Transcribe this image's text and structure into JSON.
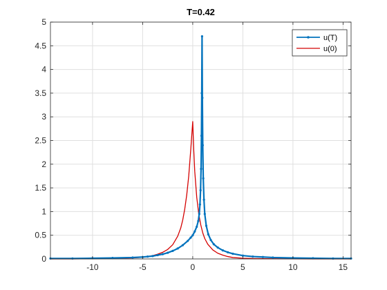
{
  "chart_data": {
    "type": "line",
    "title": "T=0.42",
    "xlabel": "",
    "ylabel": "",
    "xlim": [
      -14.2,
      15.8
    ],
    "ylim": [
      0,
      5
    ],
    "xticks": [
      -10,
      -5,
      0,
      5,
      10,
      15
    ],
    "xtick_labels": [
      "-10",
      "-5",
      "0",
      "5",
      "10",
      "15"
    ],
    "yticks": [
      0,
      0.5,
      1,
      1.5,
      2,
      2.5,
      3,
      3.5,
      4,
      4.5,
      5
    ],
    "ytick_labels": [
      "0",
      "0.5",
      "1",
      "1.5",
      "2",
      "2.5",
      "3",
      "3.5",
      "4",
      "4.5",
      "5"
    ],
    "grid": true,
    "legend_position": "top-right",
    "series": [
      {
        "name": "u(T)",
        "color": "#0072BD",
        "marker": "point",
        "x": [
          -14.2,
          -12,
          -10,
          -8,
          -6,
          -5,
          -4.5,
          -4,
          -3.5,
          -3,
          -2.5,
          -2,
          -1.5,
          -1,
          -0.5,
          -0.2,
          0,
          0.2,
          0.4,
          0.55,
          0.65,
          0.72,
          0.78,
          0.83,
          0.87,
          0.9,
          0.93,
          0.96,
          1.0,
          1.05,
          1.12,
          1.2,
          1.35,
          1.55,
          1.8,
          2.1,
          2.5,
          3,
          3.5,
          4,
          5,
          6,
          7,
          8,
          10,
          12,
          14,
          15.8
        ],
        "y": [
          0.01,
          0.01,
          0.015,
          0.02,
          0.03,
          0.04,
          0.05,
          0.06,
          0.08,
          0.1,
          0.13,
          0.17,
          0.22,
          0.29,
          0.38,
          0.45,
          0.5,
          0.58,
          0.68,
          0.8,
          0.95,
          1.15,
          1.45,
          1.9,
          2.6,
          3.5,
          4.7,
          3.4,
          2.4,
          1.7,
          1.25,
          0.95,
          0.7,
          0.52,
          0.4,
          0.31,
          0.24,
          0.18,
          0.14,
          0.11,
          0.07,
          0.05,
          0.04,
          0.03,
          0.02,
          0.015,
          0.01,
          0.01
        ]
      },
      {
        "name": "u(0)",
        "color": "#D40000",
        "marker": "none",
        "x": [
          -14.2,
          -12,
          -10,
          -8,
          -6,
          -5,
          -4.5,
          -4,
          -3.5,
          -3,
          -2.5,
          -2,
          -1.5,
          -1.2,
          -1,
          -0.8,
          -0.6,
          -0.4,
          -0.2,
          -0.1,
          0,
          0.1,
          0.2,
          0.4,
          0.6,
          0.8,
          1,
          1.2,
          1.5,
          2,
          2.5,
          3,
          3.5,
          4,
          5,
          6,
          8,
          10,
          12,
          14,
          15.8
        ],
        "y": [
          0.0,
          0.0,
          0.005,
          0.01,
          0.02,
          0.035,
          0.05,
          0.07,
          0.1,
          0.14,
          0.2,
          0.3,
          0.48,
          0.65,
          0.82,
          1.05,
          1.35,
          1.75,
          2.3,
          2.6,
          2.9,
          2.3,
          1.85,
          1.3,
          0.95,
          0.72,
          0.55,
          0.43,
          0.31,
          0.19,
          0.12,
          0.08,
          0.05,
          0.03,
          0.015,
          0.008,
          0.004,
          0.002,
          0.001,
          0.0,
          0.0
        ]
      }
    ]
  }
}
